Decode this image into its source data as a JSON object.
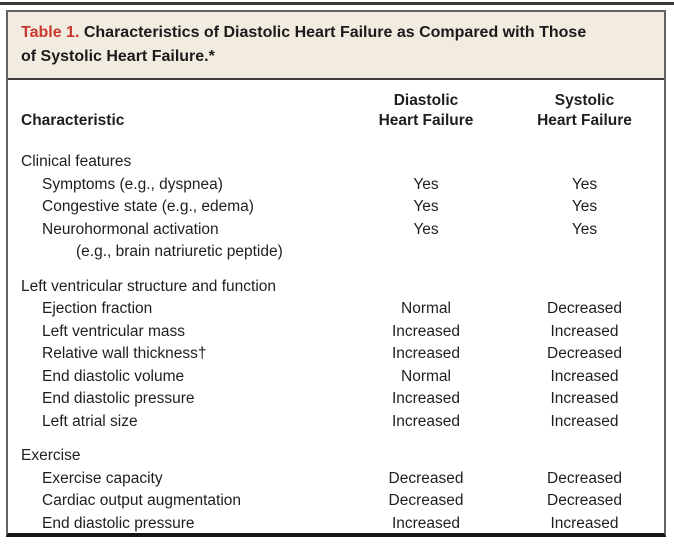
{
  "table": {
    "caption": {
      "label": "Table 1.",
      "text": "Characteristics of Diastolic Heart Failure as Compared with Those\nof Systolic Heart Failure.*"
    },
    "columns": {
      "characteristic": "Characteristic",
      "diastolic": "Diastolic\nHeart Failure",
      "systolic": "Systolic\nHeart Failure"
    },
    "sections": [
      {
        "header": "Clinical features",
        "rows": [
          {
            "label": "Symptoms (e.g., dyspnea)",
            "diastolic": "Yes",
            "systolic": "Yes"
          },
          {
            "label": "Congestive state (e.g., edema)",
            "diastolic": "Yes",
            "systolic": "Yes"
          },
          {
            "label": "Neurohormonal activation",
            "label_cont": "(e.g., brain natriuretic peptide)",
            "diastolic": "Yes",
            "systolic": "Yes"
          }
        ]
      },
      {
        "header": "Left ventricular structure and function",
        "rows": [
          {
            "label": "Ejection fraction",
            "diastolic": "Normal",
            "systolic": "Decreased"
          },
          {
            "label": "Left ventricular mass",
            "diastolic": "Increased",
            "systolic": "Increased"
          },
          {
            "label": "Relative wall thickness†",
            "diastolic": "Increased",
            "systolic": "Decreased"
          },
          {
            "label": "End diastolic volume",
            "diastolic": "Normal",
            "systolic": "Increased"
          },
          {
            "label": "End diastolic pressure",
            "diastolic": "Increased",
            "systolic": "Increased"
          },
          {
            "label": "Left atrial size",
            "diastolic": "Increased",
            "systolic": "Increased"
          }
        ]
      },
      {
        "header": "Exercise",
        "rows": [
          {
            "label": "Exercise capacity",
            "diastolic": "Decreased",
            "systolic": "Decreased"
          },
          {
            "label": "Cardiac output augmentation",
            "diastolic": "Decreased",
            "systolic": "Decreased"
          },
          {
            "label": "End diastolic pressure",
            "diastolic": "Increased",
            "systolic": "Increased"
          }
        ]
      }
    ],
    "colors": {
      "caption_label_red": "#c8382f",
      "caption_band_beige": "#f2ece0",
      "border_dark": "#151515",
      "border_gray": "#646464"
    }
  }
}
